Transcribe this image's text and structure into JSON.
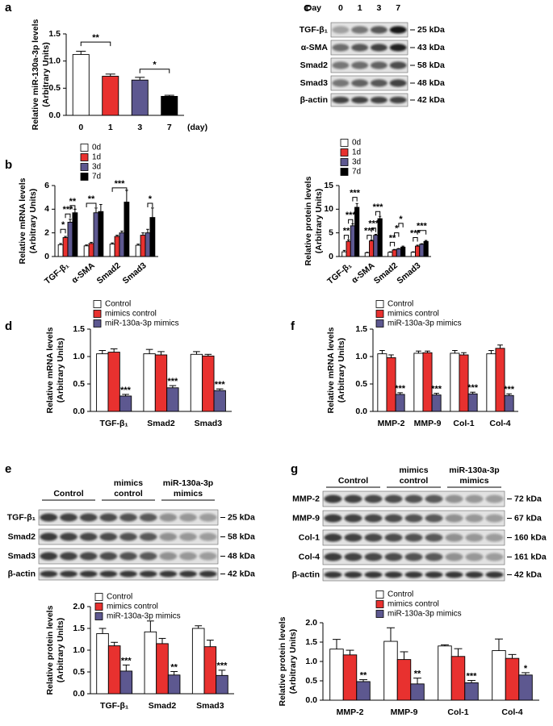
{
  "chart_data": [
    {
      "type": "bar",
      "panel": "a",
      "ylabel": [
        "Relative miR-130a-3p levels",
        "(Arbitrary Units)"
      ],
      "xlabel": "(day)",
      "categories": [
        "0",
        "1",
        "3",
        "7"
      ],
      "values": [
        1.12,
        0.72,
        0.65,
        0.35
      ],
      "errors": [
        0.06,
        0.04,
        0.05,
        0.02
      ],
      "colors": [
        "#ffffff",
        "#e8312f",
        "#5d5890",
        "#000000"
      ],
      "ylim": [
        0,
        1.5
      ],
      "yticks": [
        {
          "value": 0,
          "label": "0.0"
        },
        0.5,
        {
          "value": 1,
          "label": "1.0"
        },
        1.5
      ],
      "annotations": [
        "**",
        "*"
      ]
    },
    {
      "type": "bar",
      "panel": "b",
      "ylabel": [
        "Relative mRNA levels",
        "(Arbitrary Units)"
      ],
      "categories": [
        "TGF-β₁",
        "α-SMA",
        "Smad2",
        "Smad3"
      ],
      "series": [
        {
          "name": "0d",
          "color": "#ffffff",
          "values": [
            1.0,
            0.9,
            1.05,
            0.95
          ],
          "errors": [
            0.1,
            0.08,
            0.1,
            0.1
          ]
        },
        {
          "name": "1d",
          "color": "#e8312f",
          "values": [
            1.6,
            1.1,
            1.7,
            1.8
          ],
          "errors": [
            0.1,
            0.1,
            0.1,
            0.2
          ]
        },
        {
          "name": "3d",
          "color": "#5d5890",
          "values": [
            2.9,
            3.7,
            2.0,
            2.0
          ],
          "errors": [
            0.25,
            0.4,
            0.15,
            0.3
          ]
        },
        {
          "name": "7d",
          "color": "#000000",
          "values": [
            3.7,
            3.8,
            4.6,
            3.3
          ],
          "errors": [
            0.3,
            0.6,
            1.0,
            0.8
          ]
        }
      ],
      "ylim": [
        0,
        6
      ],
      "yticks": [
        0,
        2,
        4,
        6
      ],
      "annotations": [
        "*",
        "***",
        "**",
        "**",
        "***",
        "*"
      ]
    },
    {
      "type": "bar",
      "ylabel": [
        "Relative protein levels",
        "(Arbitrary Units)"
      ],
      "categories": [
        "TGF-β₁",
        "α-SMA",
        "Smad2",
        "Smad3"
      ],
      "series": [
        {
          "name": "0d",
          "color": "#ffffff",
          "values": [
            1.0,
            0.8,
            0.9,
            0.9
          ],
          "errors": [
            0.3,
            0.1,
            0.1,
            0.1
          ]
        },
        {
          "name": "1d",
          "color": "#e8312f",
          "values": [
            3.2,
            3.3,
            1.4,
            2.2
          ],
          "errors": [
            0.3,
            0.2,
            0.1,
            0.2
          ]
        },
        {
          "name": "3d",
          "color": "#5d5890",
          "values": [
            6.5,
            4.5,
            1.6,
            2.6
          ],
          "errors": [
            0.4,
            0.2,
            0.1,
            0.1
          ]
        },
        {
          "name": "7d",
          "color": "#000000",
          "values": [
            10.4,
            8.0,
            2.0,
            3.2
          ],
          "errors": [
            0.8,
            0.5,
            0.2,
            0.2
          ]
        }
      ],
      "ylim": [
        0,
        15
      ],
      "yticks": [
        0,
        5,
        10,
        15
      ],
      "annotations": [
        "**",
        "***",
        "***",
        "***",
        "***",
        "***",
        "**",
        "*",
        "*",
        "***",
        "***"
      ]
    },
    {
      "type": "bar",
      "panel": "d",
      "ylabel": [
        "Relative mRNA levels",
        "(Arbitrary Units)"
      ],
      "categories": [
        "TGF-β₁",
        "Smad2",
        "Smad3"
      ],
      "series": [
        {
          "name": "Control",
          "color": "#ffffff",
          "values": [
            1.05,
            1.05,
            1.04
          ],
          "errors": [
            0.06,
            0.08,
            0.05
          ]
        },
        {
          "name": "mimics control",
          "color": "#e8312f",
          "values": [
            1.08,
            1.03,
            1.01
          ],
          "errors": [
            0.06,
            0.06,
            0.03
          ]
        },
        {
          "name": "miR-130a-3p mimics",
          "color": "#5d5890",
          "values": [
            0.28,
            0.43,
            0.38
          ],
          "errors": [
            0.03,
            0.04,
            0.03
          ],
          "annotations": [
            "***",
            "***",
            "***"
          ]
        }
      ],
      "ylim": [
        0,
        1.5
      ],
      "yticks": [
        {
          "value": 0,
          "label": "0.0"
        },
        0.5,
        {
          "value": 1,
          "label": "1.0"
        },
        1.5
      ]
    },
    {
      "type": "bar",
      "panel": "f",
      "ylabel": [
        "Relative mRNA levels",
        "(Arbitrary Units)"
      ],
      "categories": [
        "MMP-2",
        "MMP-9",
        "Col-1",
        "Col-4"
      ],
      "series": [
        {
          "name": "Control",
          "color": "#ffffff",
          "values": [
            1.05,
            1.06,
            1.06,
            1.05
          ],
          "errors": [
            0.06,
            0.04,
            0.05,
            0.06
          ]
        },
        {
          "name": "mimics control",
          "color": "#e8312f",
          "values": [
            0.98,
            1.07,
            1.03,
            1.15
          ],
          "errors": [
            0.05,
            0.03,
            0.04,
            0.06
          ]
        },
        {
          "name": "miR-130a-3p mimics",
          "color": "#5d5890",
          "values": [
            0.31,
            0.3,
            0.32,
            0.29
          ],
          "errors": [
            0.03,
            0.03,
            0.03,
            0.03
          ],
          "annotations": [
            "***",
            "***",
            "***",
            "***"
          ]
        }
      ],
      "ylim": [
        0,
        1.5
      ],
      "yticks": [
        {
          "value": 0,
          "label": "0.0"
        },
        0.5,
        {
          "value": 1,
          "label": "1.0"
        },
        1.5
      ]
    },
    {
      "type": "bar",
      "ylabel": [
        "Relative protein levels",
        "(Arbitrary Units)"
      ],
      "categories": [
        "TGF-β₁",
        "Smad2",
        "Smad3"
      ],
      "series": [
        {
          "name": "Control",
          "color": "#ffffff",
          "values": [
            1.38,
            1.42,
            1.5
          ],
          "errors": [
            0.12,
            0.25,
            0.06
          ]
        },
        {
          "name": "mimics control",
          "color": "#e8312f",
          "values": [
            1.1,
            1.15,
            1.08
          ],
          "errors": [
            0.08,
            0.12,
            0.15
          ]
        },
        {
          "name": "miR-130a-3p mimics",
          "color": "#5d5890",
          "values": [
            0.52,
            0.43,
            0.42
          ],
          "errors": [
            0.14,
            0.08,
            0.12
          ],
          "annotations": [
            "***",
            "**",
            "***"
          ]
        }
      ],
      "ylim": [
        0,
        2
      ],
      "yticks": [
        {
          "value": 0,
          "label": "0.0"
        },
        0.5,
        {
          "value": 1,
          "label": "1.0"
        },
        1.5,
        {
          "value": 2,
          "label": "2.0"
        }
      ]
    },
    {
      "type": "bar",
      "ylabel": [
        "Relative protein levels",
        "(Arbitrary Units)"
      ],
      "categories": [
        "MMP-2",
        "MMP-9",
        "Col-1",
        "Col-4"
      ],
      "series": [
        {
          "name": "Control",
          "color": "#ffffff",
          "values": [
            1.32,
            1.52,
            1.4,
            1.28
          ],
          "errors": [
            0.25,
            0.35,
            0.03,
            0.3
          ]
        },
        {
          "name": "mimics control",
          "color": "#e8312f",
          "values": [
            1.17,
            1.05,
            1.13,
            1.08
          ],
          "errors": [
            0.12,
            0.2,
            0.2,
            0.1
          ]
        },
        {
          "name": "miR-130a-3p mimics",
          "color": "#5d5890",
          "values": [
            0.48,
            0.42,
            0.45,
            0.65
          ],
          "errors": [
            0.05,
            0.15,
            0.06,
            0.06
          ],
          "annotations": [
            "**",
            "**",
            "***",
            "*"
          ]
        }
      ],
      "ylim": [
        0,
        2
      ],
      "yticks": [
        {
          "value": 0,
          "label": "0.0"
        },
        0.5,
        {
          "value": 1,
          "label": "1.0"
        },
        1.5,
        {
          "value": 2,
          "label": "2.0"
        }
      ]
    }
  ],
  "blots": [
    {
      "panel": "c",
      "header": "Day",
      "lanes": [
        "0",
        "1",
        "3",
        "7"
      ],
      "rows": [
        {
          "label": "TGF-β₁",
          "size": "25 kDa"
        },
        {
          "label": "α-SMA",
          "size": "43 kDa"
        },
        {
          "label": "Smad2",
          "size": "58 kDa"
        },
        {
          "label": "Smad3",
          "size": "48 kDa"
        },
        {
          "label": "β-actin",
          "size": "42 kDa"
        }
      ]
    },
    {
      "panel": "e",
      "groups": [
        [
          "Control"
        ],
        [
          "mimics",
          "control"
        ],
        [
          "miR-130a-3p",
          "mimics"
        ]
      ],
      "rows": [
        {
          "label": "TGF-β₁",
          "size": "25 kDa"
        },
        {
          "label": "Smad2",
          "size": "58 kDa"
        },
        {
          "label": "Smad3",
          "size": "48 kDa"
        },
        {
          "label": "β-actin",
          "size": "42 kDa"
        }
      ]
    },
    {
      "panel": "g",
      "groups": [
        [
          "Control"
        ],
        [
          "mimics",
          "control"
        ],
        [
          "miR-130a-3p",
          "mimics"
        ]
      ],
      "rows": [
        {
          "label": "MMP-2",
          "size": "72 kDa"
        },
        {
          "label": "MMP-9",
          "size": "67 kDa"
        },
        {
          "label": "Col-1",
          "size": "160 kDa"
        },
        {
          "label": "Col-4",
          "size": "161 kDa"
        },
        {
          "label": "β-actin",
          "size": "42 kDa"
        }
      ]
    }
  ]
}
